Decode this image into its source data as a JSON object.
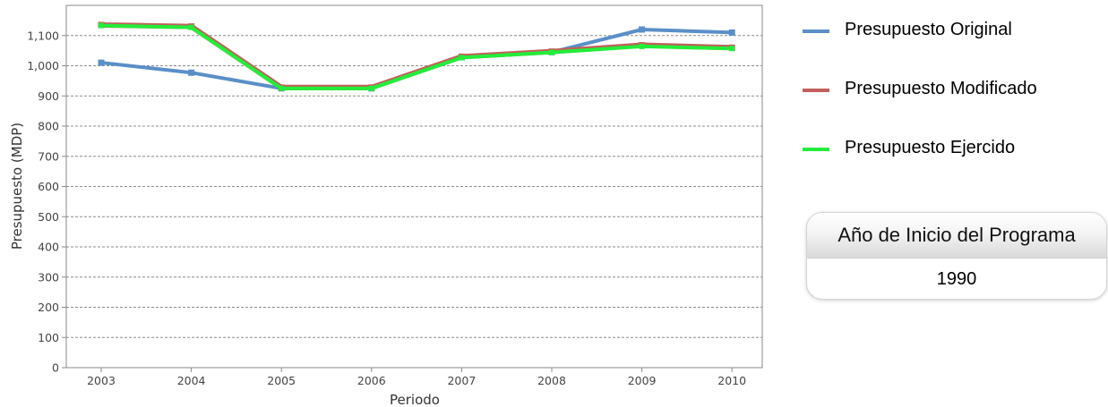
{
  "chart_data": {
    "type": "line",
    "xlabel": "Periodo",
    "ylabel": "Presupuesto (MDP)",
    "categories": [
      "2003",
      "2004",
      "2005",
      "2006",
      "2007",
      "2008",
      "2009",
      "2010"
    ],
    "ylim": [
      0,
      1200
    ],
    "yticks": [
      0,
      100,
      200,
      300,
      400,
      500,
      600,
      700,
      800,
      900,
      1000,
      1100
    ],
    "ytick_labels": [
      "0",
      "100",
      "200",
      "300",
      "400",
      "500",
      "600",
      "700",
      "800",
      "900",
      "1,000",
      "1,100"
    ],
    "grid": true,
    "legend_position": "right",
    "series": [
      {
        "name": "Presupuesto Original",
        "color": "#5b8fc7",
        "values": [
          1010,
          977,
          925,
          925,
          1028,
          1045,
          1120,
          1110
        ]
      },
      {
        "name": "Presupuesto Modificado",
        "color": "#c0605a",
        "values": [
          1135,
          1130,
          928,
          928,
          1030,
          1047,
          1068,
          1060
        ]
      },
      {
        "name": "Presupuesto Ejercido",
        "color": "#22ee3a",
        "values": [
          1133,
          1127,
          925,
          925,
          1027,
          1044,
          1064,
          1057
        ]
      }
    ]
  },
  "info_box": {
    "title": "Año de Inicio del Programa",
    "value": "1990"
  }
}
